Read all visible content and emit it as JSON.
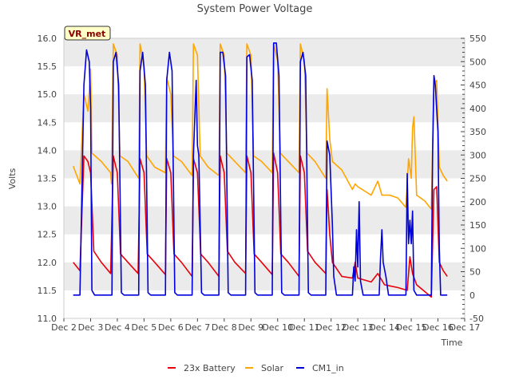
{
  "chart_data": {
    "type": "line",
    "title": "System Power Voltage",
    "xlabel": "Time",
    "ylabel": "Volts",
    "y2label": "",
    "badge": "VR_met",
    "colors": {
      "battery": "#e8000b",
      "solar": "#ffa500",
      "cm1": "#0000dd",
      "badge_bg": "#ffffc8",
      "badge_text": "#8b0000",
      "band": "#ebebeb"
    },
    "x_ticks": [
      "Dec 2",
      "Dec 3",
      "Dec 4",
      "Dec 5",
      "Dec 6",
      "Dec 7",
      "Dec 8",
      "Dec 9",
      "Dec 10",
      "Dec 11",
      "Dec 12",
      "Dec 13",
      "Dec 14",
      "Dec 15",
      "Dec 16",
      "Dec 17"
    ],
    "xlim": [
      2,
      17
    ],
    "ylim": [
      11.0,
      16.0
    ],
    "y_ticks": [
      "11.0",
      "11.5",
      "12.0",
      "12.5",
      "13.0",
      "13.5",
      "14.0",
      "14.5",
      "15.0",
      "15.5",
      "16.0"
    ],
    "y2lim": [
      -50,
      550
    ],
    "y2_ticks": [
      "-50",
      "0",
      "50",
      "100",
      "150",
      "200",
      "250",
      "300",
      "350",
      "400",
      "450",
      "500",
      "550"
    ],
    "legend": [
      "23x Battery",
      "Solar",
      "CM1_in"
    ],
    "legend_position": "bottom-center",
    "series": [
      {
        "name": "23x Battery",
        "axis": "left",
        "points": [
          [
            2.35,
            12.0
          ],
          [
            2.6,
            11.85
          ],
          [
            2.75,
            13.9
          ],
          [
            2.9,
            13.8
          ],
          [
            3.0,
            13.6
          ],
          [
            3.12,
            12.2
          ],
          [
            3.4,
            12.0
          ],
          [
            3.75,
            11.8
          ],
          [
            3.85,
            13.9
          ],
          [
            4.0,
            13.6
          ],
          [
            4.12,
            12.15
          ],
          [
            4.4,
            12.0
          ],
          [
            4.78,
            11.8
          ],
          [
            4.85,
            13.85
          ],
          [
            5.0,
            13.6
          ],
          [
            5.12,
            12.15
          ],
          [
            5.4,
            12.0
          ],
          [
            5.8,
            11.78
          ],
          [
            5.85,
            13.85
          ],
          [
            6.0,
            13.6
          ],
          [
            6.12,
            12.15
          ],
          [
            6.4,
            12.0
          ],
          [
            6.8,
            11.75
          ],
          [
            6.85,
            13.85
          ],
          [
            7.0,
            13.6
          ],
          [
            7.12,
            12.15
          ],
          [
            7.4,
            12.0
          ],
          [
            7.8,
            11.75
          ],
          [
            7.85,
            13.9
          ],
          [
            8.0,
            13.6
          ],
          [
            8.12,
            12.2
          ],
          [
            8.4,
            12.0
          ],
          [
            8.8,
            11.8
          ],
          [
            8.85,
            13.9
          ],
          [
            9.0,
            13.6
          ],
          [
            9.12,
            12.15
          ],
          [
            9.4,
            12.0
          ],
          [
            9.8,
            11.78
          ],
          [
            9.85,
            13.95
          ],
          [
            10.0,
            13.6
          ],
          [
            10.12,
            12.15
          ],
          [
            10.4,
            12.0
          ],
          [
            10.8,
            11.75
          ],
          [
            10.85,
            13.9
          ],
          [
            11.0,
            13.6
          ],
          [
            11.12,
            12.2
          ],
          [
            11.4,
            12.0
          ],
          [
            11.8,
            11.8
          ],
          [
            11.85,
            13.3
          ],
          [
            11.95,
            12.5
          ],
          [
            12.05,
            12.0
          ],
          [
            12.4,
            11.75
          ],
          [
            12.8,
            11.72
          ],
          [
            12.9,
            12.0
          ],
          [
            13.0,
            11.72
          ],
          [
            13.5,
            11.65
          ],
          [
            13.75,
            11.8
          ],
          [
            14.0,
            11.6
          ],
          [
            14.2,
            11.58
          ],
          [
            14.5,
            11.55
          ],
          [
            14.85,
            11.5
          ],
          [
            14.95,
            12.1
          ],
          [
            15.05,
            11.8
          ],
          [
            15.2,
            11.6
          ],
          [
            15.5,
            11.48
          ],
          [
            15.75,
            11.38
          ],
          [
            15.85,
            13.3
          ],
          [
            15.95,
            13.35
          ],
          [
            16.05,
            12.0
          ],
          [
            16.2,
            11.85
          ],
          [
            16.35,
            11.75
          ]
        ]
      },
      {
        "name": "Solar",
        "axis": "left",
        "points": [
          [
            2.35,
            13.72
          ],
          [
            2.6,
            13.4
          ],
          [
            2.75,
            15.0
          ],
          [
            2.9,
            14.7
          ],
          [
            3.0,
            15.45
          ],
          [
            3.05,
            13.95
          ],
          [
            3.4,
            13.8
          ],
          [
            3.75,
            13.6
          ],
          [
            3.78,
            13.4
          ],
          [
            3.85,
            15.9
          ],
          [
            4.0,
            15.7
          ],
          [
            4.1,
            13.9
          ],
          [
            4.4,
            13.8
          ],
          [
            4.8,
            13.5
          ],
          [
            4.85,
            15.9
          ],
          [
            5.0,
            15.5
          ],
          [
            5.1,
            13.9
          ],
          [
            5.4,
            13.7
          ],
          [
            5.8,
            13.6
          ],
          [
            5.85,
            15.3
          ],
          [
            6.0,
            15.0
          ],
          [
            6.1,
            13.9
          ],
          [
            6.4,
            13.8
          ],
          [
            6.8,
            13.55
          ],
          [
            6.85,
            15.9
          ],
          [
            7.0,
            15.7
          ],
          [
            7.1,
            13.9
          ],
          [
            7.4,
            13.7
          ],
          [
            7.8,
            13.55
          ],
          [
            7.85,
            15.9
          ],
          [
            8.0,
            15.7
          ],
          [
            8.1,
            13.95
          ],
          [
            8.4,
            13.8
          ],
          [
            8.8,
            13.6
          ],
          [
            8.85,
            15.9
          ],
          [
            9.0,
            15.7
          ],
          [
            9.1,
            13.9
          ],
          [
            9.4,
            13.8
          ],
          [
            9.8,
            13.6
          ],
          [
            9.85,
            15.9
          ],
          [
            10.0,
            15.6
          ],
          [
            10.1,
            13.95
          ],
          [
            10.4,
            13.8
          ],
          [
            10.8,
            13.6
          ],
          [
            10.85,
            15.9
          ],
          [
            11.0,
            15.6
          ],
          [
            11.1,
            13.95
          ],
          [
            11.4,
            13.8
          ],
          [
            11.8,
            13.5
          ],
          [
            11.85,
            15.1
          ],
          [
            11.95,
            14.2
          ],
          [
            12.05,
            13.8
          ],
          [
            12.4,
            13.65
          ],
          [
            12.8,
            13.3
          ],
          [
            12.9,
            13.4
          ],
          [
            13.0,
            13.35
          ],
          [
            13.5,
            13.2
          ],
          [
            13.75,
            13.45
          ],
          [
            13.9,
            13.2
          ],
          [
            14.2,
            13.2
          ],
          [
            14.5,
            13.15
          ],
          [
            14.8,
            12.98
          ],
          [
            14.9,
            13.85
          ],
          [
            15.0,
            13.5
          ],
          [
            15.05,
            14.4
          ],
          [
            15.1,
            14.6
          ],
          [
            15.2,
            13.2
          ],
          [
            15.5,
            13.1
          ],
          [
            15.75,
            12.95
          ],
          [
            15.85,
            15.2
          ],
          [
            15.95,
            15.25
          ],
          [
            16.05,
            13.7
          ],
          [
            16.2,
            13.55
          ],
          [
            16.35,
            13.45
          ]
        ]
      },
      {
        "name": "CM1_in",
        "axis": "right",
        "points": [
          [
            2.35,
            0
          ],
          [
            2.6,
            0
          ],
          [
            2.75,
            450
          ],
          [
            2.85,
            525
          ],
          [
            2.95,
            500
          ],
          [
            3.0,
            400
          ],
          [
            3.05,
            10
          ],
          [
            3.15,
            0
          ],
          [
            3.8,
            0
          ],
          [
            3.85,
            500
          ],
          [
            3.95,
            520
          ],
          [
            4.05,
            450
          ],
          [
            4.15,
            5
          ],
          [
            4.25,
            0
          ],
          [
            4.8,
            0
          ],
          [
            4.85,
            480
          ],
          [
            4.95,
            520
          ],
          [
            5.05,
            450
          ],
          [
            5.15,
            5
          ],
          [
            5.25,
            0
          ],
          [
            5.8,
            0
          ],
          [
            5.85,
            460
          ],
          [
            5.95,
            520
          ],
          [
            6.05,
            480
          ],
          [
            6.15,
            5
          ],
          [
            6.25,
            0
          ],
          [
            6.8,
            0
          ],
          [
            6.85,
            300
          ],
          [
            6.95,
            460
          ],
          [
            7.0,
            320
          ],
          [
            7.05,
            300
          ],
          [
            7.15,
            5
          ],
          [
            7.25,
            0
          ],
          [
            7.8,
            0
          ],
          [
            7.85,
            520
          ],
          [
            7.95,
            520
          ],
          [
            8.05,
            470
          ],
          [
            8.15,
            5
          ],
          [
            8.25,
            0
          ],
          [
            8.8,
            0
          ],
          [
            8.85,
            510
          ],
          [
            8.95,
            515
          ],
          [
            9.05,
            460
          ],
          [
            9.15,
            5
          ],
          [
            9.25,
            0
          ],
          [
            9.8,
            0
          ],
          [
            9.85,
            540
          ],
          [
            9.95,
            540
          ],
          [
            10.05,
            470
          ],
          [
            10.15,
            5
          ],
          [
            10.25,
            0
          ],
          [
            10.8,
            0
          ],
          [
            10.85,
            500
          ],
          [
            10.95,
            520
          ],
          [
            11.05,
            470
          ],
          [
            11.15,
            5
          ],
          [
            11.25,
            0
          ],
          [
            11.8,
            0
          ],
          [
            11.85,
            330
          ],
          [
            11.95,
            300
          ],
          [
            12.05,
            150
          ],
          [
            12.1,
            40
          ],
          [
            12.2,
            0
          ],
          [
            12.8,
            0
          ],
          [
            12.85,
            60
          ],
          [
            12.9,
            30
          ],
          [
            12.95,
            140
          ],
          [
            13.0,
            60
          ],
          [
            13.05,
            200
          ],
          [
            13.1,
            30
          ],
          [
            13.2,
            0
          ],
          [
            13.8,
            0
          ],
          [
            13.85,
            80
          ],
          [
            13.9,
            140
          ],
          [
            13.95,
            70
          ],
          [
            14.05,
            40
          ],
          [
            14.15,
            0
          ],
          [
            14.8,
            0
          ],
          [
            14.85,
            260
          ],
          [
            14.9,
            110
          ],
          [
            14.95,
            160
          ],
          [
            15.0,
            110
          ],
          [
            15.05,
            180
          ],
          [
            15.1,
            10
          ],
          [
            15.2,
            0
          ],
          [
            15.75,
            0
          ],
          [
            15.8,
            300
          ],
          [
            15.85,
            470
          ],
          [
            15.9,
            450
          ],
          [
            16.0,
            350
          ],
          [
            16.05,
            100
          ],
          [
            16.1,
            0
          ],
          [
            16.35,
            0
          ]
        ]
      }
    ]
  }
}
